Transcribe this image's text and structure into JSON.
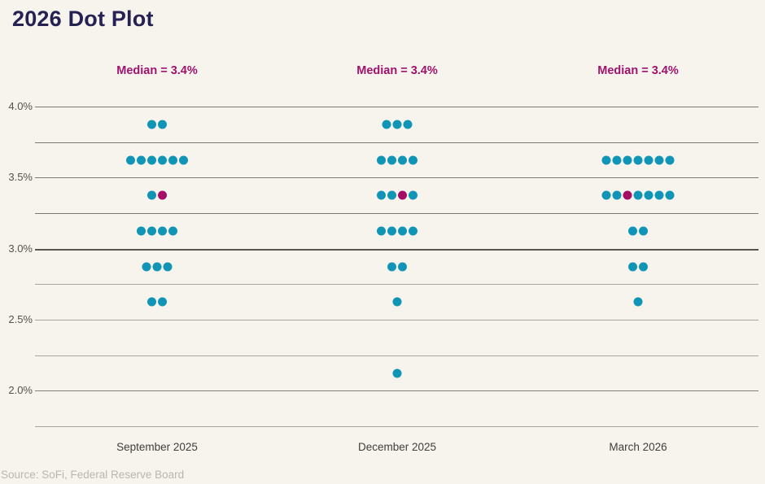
{
  "page": {
    "title": "2026 Dot Plot",
    "source": "Source: SoFi, Federal Reserve Board"
  },
  "colors": {
    "background": "#f7f4ee",
    "title": "#262153",
    "dot": "#1095b6",
    "median_dot": "#a50d66",
    "median_label_text": "#a1126d",
    "source_text": "#b9b6b0"
  },
  "chart_data": {
    "type": "scatter",
    "subtype": "dot-plot",
    "title": "2026 Dot Plot",
    "grid": true,
    "legend": "none",
    "x_categories": [
      "September 2025",
      "December 2025",
      "March 2026"
    ],
    "y_axis": {
      "unit": "%",
      "range": [
        1.75,
        4.0
      ],
      "tick_labels": [
        "4.0%",
        "3.5%",
        "3.0%",
        "2.5%",
        "2.0%"
      ],
      "tick_values": [
        4.0,
        3.5,
        3.0,
        2.5,
        2.0
      ],
      "gridline_values": [
        4.0,
        3.75,
        3.5,
        3.25,
        3.0,
        2.75,
        2.5,
        2.25,
        2.0,
        1.75
      ]
    },
    "series": [
      {
        "meeting": "September 2025",
        "median_label": "Median = 3.4%",
        "median": 3.4,
        "dot_rows": [
          {
            "rate": 3.875,
            "count": 2
          },
          {
            "rate": 3.625,
            "count": 6
          },
          {
            "rate": 3.375,
            "count": 2,
            "median_dot_index": 1
          },
          {
            "rate": 3.125,
            "count": 4
          },
          {
            "rate": 2.875,
            "count": 3
          },
          {
            "rate": 2.625,
            "count": 2
          }
        ]
      },
      {
        "meeting": "December 2025",
        "median_label": "Median = 3.4%",
        "median": 3.4,
        "dot_rows": [
          {
            "rate": 3.875,
            "count": 3
          },
          {
            "rate": 3.625,
            "count": 4
          },
          {
            "rate": 3.375,
            "count": 4,
            "median_dot_index": 2
          },
          {
            "rate": 3.125,
            "count": 4
          },
          {
            "rate": 2.875,
            "count": 2
          },
          {
            "rate": 2.625,
            "count": 1
          },
          {
            "rate": 2.125,
            "count": 1
          }
        ]
      },
      {
        "meeting": "March 2026",
        "median_label": "Median = 3.4%",
        "median": 3.4,
        "dot_rows": [
          {
            "rate": 3.625,
            "count": 7
          },
          {
            "rate": 3.375,
            "count": 7,
            "median_dot_index": 2
          },
          {
            "rate": 3.125,
            "count": 2
          },
          {
            "rate": 2.875,
            "count": 2
          },
          {
            "rate": 2.625,
            "count": 1
          }
        ]
      }
    ]
  }
}
